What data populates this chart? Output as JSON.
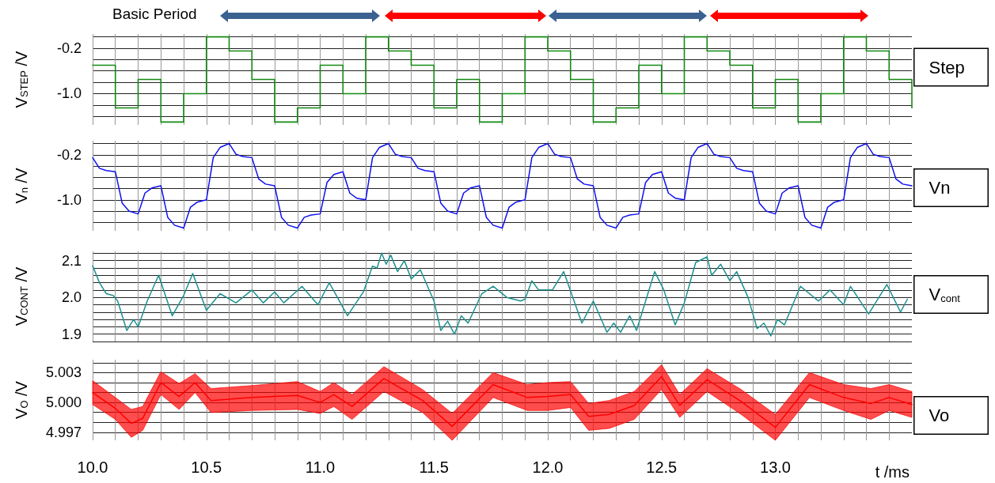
{
  "chart_data": [
    {
      "type": "step",
      "ylabel": "V$_{STEP}$ /V",
      "annotations": [
        "Basic Period"
      ],
      "legend": "right",
      "tick_labels": "y",
      "grid": true,
      "marker": "none",
      "xlim": [
        10,
        13.6
      ],
      "ylim": [
        -1.55,
        0.05
      ],
      "xticks": [
        {
          "value": 10,
          "label": null
        },
        {
          "value": 10.1,
          "label": null
        },
        {
          "value": 10.2,
          "label": null
        },
        {
          "value": 10.3,
          "label": null
        },
        {
          "value": 10.4,
          "label": null
        },
        {
          "value": 10.5,
          "label": null
        },
        {
          "value": 10.6,
          "label": null
        },
        {
          "value": 10.7,
          "label": null
        },
        {
          "value": 10.8,
          "label": null
        },
        {
          "value": 10.9,
          "label": null
        },
        {
          "value": 11,
          "label": null
        },
        {
          "value": 11.1,
          "label": null
        },
        {
          "value": 11.2,
          "label": null
        },
        {
          "value": 11.3,
          "label": null
        },
        {
          "value": 11.4,
          "label": null
        },
        {
          "value": 11.5,
          "label": null
        },
        {
          "value": 11.6,
          "label": null
        },
        {
          "value": 11.7,
          "label": null
        },
        {
          "value": 11.8,
          "label": null
        },
        {
          "value": 11.9,
          "label": null
        },
        {
          "value": 12,
          "label": null
        },
        {
          "value": 12.1,
          "label": null
        },
        {
          "value": 12.2,
          "label": null
        },
        {
          "value": 12.3,
          "label": null
        },
        {
          "value": 12.4,
          "label": null
        },
        {
          "value": 12.5,
          "label": null
        },
        {
          "value": 12.6,
          "label": null
        },
        {
          "value": 12.7,
          "label": null
        },
        {
          "value": 12.8,
          "label": null
        },
        {
          "value": 12.9,
          "label": null
        },
        {
          "value": 13,
          "label": null
        },
        {
          "value": 13.1,
          "label": null
        },
        {
          "value": 13.2,
          "label": null
        },
        {
          "value": 13.3,
          "label": null
        },
        {
          "value": 13.4,
          "label": null
        },
        {
          "value": 13.5,
          "label": null
        }
      ],
      "yticks": [
        {
          "value": 0,
          "label": null
        },
        {
          "value": -0.2,
          "label": "-0.2"
        },
        {
          "value": -0.4,
          "label": null
        },
        {
          "value": -0.6,
          "label": null
        },
        {
          "value": -0.8,
          "label": null
        },
        {
          "value": -1.0,
          "label": "-1.0"
        },
        {
          "value": -1.2,
          "label": null
        },
        {
          "value": -1.4,
          "label": null
        }
      ],
      "series": [
        {
          "name": "Step",
          "color": "#138a13",
          "x": [
            10,
            10.1,
            10.2,
            10.3,
            10.4,
            10.5,
            10.6,
            10.7,
            10.8,
            10.9,
            11,
            11.1,
            11.2,
            11.3,
            11.4,
            11.5,
            11.6,
            11.7,
            11.8,
            11.9,
            12,
            12.1,
            12.2,
            12.3,
            12.4,
            12.5,
            12.6,
            12.7,
            12.8,
            12.9,
            13,
            13.1,
            13.2,
            13.3,
            13.4,
            13.5,
            13.6
          ],
          "values": [
            -0.5,
            -1.25,
            -0.75,
            -1.5,
            -1.0,
            0,
            -0.25,
            -0.75,
            -1.5,
            -1.25,
            -0.5,
            -1.0,
            0,
            -0.25,
            -0.5,
            -1.25,
            -0.75,
            -1.5,
            -1.0,
            0,
            -0.25,
            -0.75,
            -1.5,
            -1.25,
            -0.5,
            -1.0,
            0,
            -0.25,
            -0.5,
            -1.25,
            -0.75,
            -1.5,
            -1.0,
            0,
            -0.25,
            -0.75,
            -1.25
          ]
        }
      ]
    },
    {
      "type": "line",
      "ylabel": "V$_{n}$ /V",
      "legend": "right",
      "tick_labels": "y",
      "grid": true,
      "marker": "none",
      "xlim": [
        10,
        13.6
      ],
      "ylim": [
        -1.55,
        0.05
      ],
      "xticks": [
        {
          "value": 10,
          "label": null
        },
        {
          "value": 10.1,
          "label": null
        },
        {
          "value": 10.2,
          "label": null
        },
        {
          "value": 10.3,
          "label": null
        },
        {
          "value": 10.4,
          "label": null
        },
        {
          "value": 10.5,
          "label": null
        },
        {
          "value": 10.6,
          "label": null
        },
        {
          "value": 10.7,
          "label": null
        },
        {
          "value": 10.8,
          "label": null
        },
        {
          "value": 10.9,
          "label": null
        },
        {
          "value": 11,
          "label": null
        },
        {
          "value": 11.1,
          "label": null
        },
        {
          "value": 11.2,
          "label": null
        },
        {
          "value": 11.3,
          "label": null
        },
        {
          "value": 11.4,
          "label": null
        },
        {
          "value": 11.5,
          "label": null
        },
        {
          "value": 11.6,
          "label": null
        },
        {
          "value": 11.7,
          "label": null
        },
        {
          "value": 11.8,
          "label": null
        },
        {
          "value": 11.9,
          "label": null
        },
        {
          "value": 12,
          "label": null
        },
        {
          "value": 12.1,
          "label": null
        },
        {
          "value": 12.2,
          "label": null
        },
        {
          "value": 12.3,
          "label": null
        },
        {
          "value": 12.4,
          "label": null
        },
        {
          "value": 12.5,
          "label": null
        },
        {
          "value": 12.6,
          "label": null
        },
        {
          "value": 12.7,
          "label": null
        },
        {
          "value": 12.8,
          "label": null
        },
        {
          "value": 12.9,
          "label": null
        },
        {
          "value": 13,
          "label": null
        },
        {
          "value": 13.1,
          "label": null
        },
        {
          "value": 13.2,
          "label": null
        },
        {
          "value": 13.3,
          "label": null
        },
        {
          "value": 13.4,
          "label": null
        },
        {
          "value": 13.5,
          "label": null
        }
      ],
      "yticks": [
        {
          "value": 0,
          "label": null
        },
        {
          "value": -0.2,
          "label": "-0.2"
        },
        {
          "value": -0.4,
          "label": null
        },
        {
          "value": -0.6,
          "label": null
        },
        {
          "value": -0.8,
          "label": null
        },
        {
          "value": -1.0,
          "label": "-1.0"
        },
        {
          "value": -1.2,
          "label": null
        },
        {
          "value": -1.4,
          "label": null
        }
      ],
      "series": [
        {
          "name": "Vn",
          "color": "#1010f0",
          "x": [
            10,
            10.03,
            10.06,
            10.1,
            10.13,
            10.16,
            10.2,
            10.23,
            10.26,
            10.3,
            10.33,
            10.36,
            10.4,
            10.43,
            10.46,
            10.5,
            10.53,
            10.56,
            10.6,
            10.63,
            10.66,
            10.7,
            10.73,
            10.76,
            10.8,
            10.83,
            10.86,
            10.9,
            10.93,
            10.96,
            11,
            11.03,
            11.06,
            11.1,
            11.13,
            11.16,
            11.2,
            11.23,
            11.26,
            11.3,
            11.33,
            11.36,
            11.4,
            11.43,
            11.46,
            11.5,
            11.53,
            11.56,
            11.6,
            11.63,
            11.66,
            11.7,
            11.73,
            11.76,
            11.8,
            11.83,
            11.86,
            11.9,
            11.93,
            11.96,
            12,
            12.03,
            12.06,
            12.1,
            12.13,
            12.16,
            12.2,
            12.23,
            12.26,
            12.3,
            12.33,
            12.36,
            12.4,
            12.43,
            12.46,
            12.5,
            12.53,
            12.56,
            12.6,
            12.63,
            12.66,
            12.7,
            12.73,
            12.76,
            12.8,
            12.83,
            12.86,
            12.9,
            12.93,
            12.96,
            13,
            13.03,
            13.06,
            13.1,
            13.13,
            13.16,
            13.2,
            13.23,
            13.26,
            13.3,
            13.33,
            13.36,
            13.4,
            13.43,
            13.46,
            13.5,
            13.53,
            13.56,
            13.6
          ],
          "values": [
            -0.25,
            -0.44,
            -0.48,
            -0.5,
            -1.06,
            -1.2,
            -1.25,
            -0.88,
            -0.79,
            -0.75,
            -1.31,
            -1.45,
            -1.5,
            -1.13,
            -1.04,
            -1.0,
            -0.25,
            -0.07,
            0,
            -0.19,
            -0.23,
            -0.25,
            -0.63,
            -0.72,
            -0.75,
            -1.31,
            -1.45,
            -1.5,
            -1.31,
            -1.27,
            -1.25,
            -0.69,
            -0.55,
            -0.5,
            -0.88,
            -0.97,
            -1.0,
            -0.25,
            -0.07,
            0,
            -0.19,
            -0.23,
            -0.25,
            -0.44,
            -0.48,
            -0.5,
            -1.06,
            -1.2,
            -1.25,
            -0.88,
            -0.79,
            -0.75,
            -1.31,
            -1.45,
            -1.5,
            -1.13,
            -1.04,
            -1.0,
            -0.25,
            -0.07,
            0,
            -0.19,
            -0.23,
            -0.25,
            -0.63,
            -0.72,
            -0.75,
            -1.31,
            -1.45,
            -1.5,
            -1.31,
            -1.27,
            -1.25,
            -0.69,
            -0.55,
            -0.5,
            -0.88,
            -0.97,
            -1.0,
            -0.25,
            -0.07,
            0,
            -0.19,
            -0.23,
            -0.25,
            -0.44,
            -0.48,
            -0.5,
            -1.06,
            -1.2,
            -1.25,
            -0.88,
            -0.79,
            -0.75,
            -1.31,
            -1.45,
            -1.5,
            -1.13,
            -1.04,
            -1.0,
            -0.25,
            -0.07,
            0,
            -0.19,
            -0.23,
            -0.25,
            -0.63,
            -0.72,
            -0.75
          ]
        }
      ]
    },
    {
      "type": "line",
      "ylabel": "V$_{CONT}$ /V",
      "legend": "right",
      "tick_labels": "y",
      "grid": true,
      "marker": "none",
      "xlim": [
        10,
        13.6
      ],
      "ylim": [
        1.88,
        2.125
      ],
      "xticks": [
        {
          "value": 10,
          "label": null
        },
        {
          "value": 10.1,
          "label": null
        },
        {
          "value": 10.2,
          "label": null
        },
        {
          "value": 10.3,
          "label": null
        },
        {
          "value": 10.4,
          "label": null
        },
        {
          "value": 10.5,
          "label": null
        },
        {
          "value": 10.6,
          "label": null
        },
        {
          "value": 10.7,
          "label": null
        },
        {
          "value": 10.8,
          "label": null
        },
        {
          "value": 10.9,
          "label": null
        },
        {
          "value": 11,
          "label": null
        },
        {
          "value": 11.1,
          "label": null
        },
        {
          "value": 11.2,
          "label": null
        },
        {
          "value": 11.3,
          "label": null
        },
        {
          "value": 11.4,
          "label": null
        },
        {
          "value": 11.5,
          "label": null
        },
        {
          "value": 11.6,
          "label": null
        },
        {
          "value": 11.7,
          "label": null
        },
        {
          "value": 11.8,
          "label": null
        },
        {
          "value": 11.9,
          "label": null
        },
        {
          "value": 12,
          "label": null
        },
        {
          "value": 12.1,
          "label": null
        },
        {
          "value": 12.2,
          "label": null
        },
        {
          "value": 12.3,
          "label": null
        },
        {
          "value": 12.4,
          "label": null
        },
        {
          "value": 12.5,
          "label": null
        },
        {
          "value": 12.6,
          "label": null
        },
        {
          "value": 12.7,
          "label": null
        },
        {
          "value": 12.8,
          "label": null
        },
        {
          "value": 12.9,
          "label": null
        },
        {
          "value": 13,
          "label": null
        },
        {
          "value": 13.1,
          "label": null
        },
        {
          "value": 13.2,
          "label": null
        },
        {
          "value": 13.3,
          "label": null
        },
        {
          "value": 13.4,
          "label": null
        },
        {
          "value": 13.5,
          "label": null
        }
      ],
      "yticks": [
        {
          "value": 1.88,
          "label": null
        },
        {
          "value": 1.9,
          "label": "1.9"
        },
        {
          "value": 1.92,
          "label": null
        },
        {
          "value": 1.94,
          "label": null
        },
        {
          "value": 1.96,
          "label": null
        },
        {
          "value": 1.98,
          "label": null
        },
        {
          "value": 2.0,
          "label": "2.0"
        },
        {
          "value": 2.02,
          "label": null
        },
        {
          "value": 2.04,
          "label": null
        },
        {
          "value": 2.06,
          "label": null
        },
        {
          "value": 2.08,
          "label": null
        },
        {
          "value": 2.1,
          "label": "2.1"
        },
        {
          "value": 2.12,
          "label": null
        }
      ],
      "series": [
        {
          "name": "V$_{cont}$",
          "color": "#1f9090",
          "x": [
            10,
            10.03,
            10.06,
            10.09,
            10.11,
            10.15,
            10.18,
            10.2,
            10.24,
            10.29,
            10.35,
            10.4,
            10.44,
            10.5,
            10.56,
            10.63,
            10.7,
            10.75,
            10.8,
            10.84,
            10.92,
            10.99,
            11.04,
            11.12,
            11.19,
            11.23,
            11.25,
            11.27,
            11.29,
            11.31,
            11.34,
            11.37,
            11.4,
            11.44,
            11.5,
            11.53,
            11.56,
            11.59,
            11.62,
            11.65,
            11.71,
            11.76,
            11.82,
            11.88,
            11.9,
            11.93,
            11.96,
            12.02,
            12.07,
            12.11,
            12.15,
            12.2,
            12.26,
            12.29,
            12.32,
            12.36,
            12.39,
            12.47,
            12.51,
            12.56,
            12.6,
            12.65,
            12.7,
            12.72,
            12.76,
            12.8,
            12.83,
            12.88,
            12.92,
            12.95,
            12.98,
            13.01,
            13.04,
            13.11,
            13.19,
            13.24,
            13.3,
            13.33,
            13.41,
            13.49,
            13.55,
            13.58
          ],
          "values": [
            2.086,
            2.04,
            2.01,
            2.005,
            1.99,
            1.91,
            1.94,
            1.92,
            1.99,
            2.06,
            1.95,
            2.005,
            2.065,
            1.965,
            2.01,
            1.985,
            2.02,
            1.985,
            2.015,
            1.985,
            2.03,
            1.98,
            2.04,
            1.95,
            2.015,
            2.085,
            2.08,
            2.12,
            2.09,
            2.115,
            2.07,
            2.1,
            2.05,
            2.075,
            1.99,
            1.91,
            1.935,
            1.9,
            1.95,
            1.93,
            2.01,
            2.03,
            2.0,
            1.99,
            1.995,
            2.045,
            2.02,
            2.02,
            2.07,
            2.0,
            1.93,
            1.99,
            1.905,
            1.93,
            1.905,
            1.95,
            1.91,
            2.07,
            2.02,
            1.925,
            1.985,
            2.095,
            2.11,
            2.06,
            2.09,
            2.045,
            2.07,
            2.0,
            1.915,
            1.93,
            1.895,
            1.94,
            1.925,
            2.03,
            1.99,
            2.02,
            1.98,
            2.03,
            1.955,
            2.035,
            1.96,
            1.995
          ]
        }
      ]
    },
    {
      "type": "line",
      "ylabel": "V$_{O}$ /V",
      "xlabel": "t /ms",
      "legend": "right",
      "grid": true,
      "marker": "none",
      "xlim": [
        10,
        13.6
      ],
      "ylim": [
        4.9962,
        5.0043
      ],
      "xticks": [
        {
          "value": 10,
          "label": "10.0"
        },
        {
          "value": 10.1,
          "label": null
        },
        {
          "value": 10.2,
          "label": null
        },
        {
          "value": 10.3,
          "label": null
        },
        {
          "value": 10.4,
          "label": null
        },
        {
          "value": 10.5,
          "label": "10.5"
        },
        {
          "value": 10.6,
          "label": null
        },
        {
          "value": 10.7,
          "label": null
        },
        {
          "value": 10.8,
          "label": null
        },
        {
          "value": 10.9,
          "label": null
        },
        {
          "value": 11,
          "label": "11.0"
        },
        {
          "value": 11.1,
          "label": null
        },
        {
          "value": 11.2,
          "label": null
        },
        {
          "value": 11.3,
          "label": null
        },
        {
          "value": 11.4,
          "label": null
        },
        {
          "value": 11.5,
          "label": "11.5"
        },
        {
          "value": 11.6,
          "label": null
        },
        {
          "value": 11.7,
          "label": null
        },
        {
          "value": 11.8,
          "label": null
        },
        {
          "value": 11.9,
          "label": null
        },
        {
          "value": 12,
          "label": "12.0"
        },
        {
          "value": 12.1,
          "label": null
        },
        {
          "value": 12.2,
          "label": null
        },
        {
          "value": 12.3,
          "label": null
        },
        {
          "value": 12.4,
          "label": null
        },
        {
          "value": 12.5,
          "label": "12.5"
        },
        {
          "value": 12.6,
          "label": null
        },
        {
          "value": 12.7,
          "label": null
        },
        {
          "value": 12.8,
          "label": null
        },
        {
          "value": 12.9,
          "label": null
        },
        {
          "value": 13,
          "label": "13.0"
        },
        {
          "value": 13.1,
          "label": null
        },
        {
          "value": 13.2,
          "label": null
        },
        {
          "value": 13.3,
          "label": null
        },
        {
          "value": 13.4,
          "label": null
        },
        {
          "value": 13.5,
          "label": null
        }
      ],
      "yticks": [
        {
          "value": 4.997,
          "label": "4.997"
        },
        {
          "value": 4.998,
          "label": null
        },
        {
          "value": 4.999,
          "label": null
        },
        {
          "value": 5.0,
          "label": "5.000"
        },
        {
          "value": 5.001,
          "label": null
        },
        {
          "value": 5.002,
          "label": null
        },
        {
          "value": 5.003,
          "label": "5.003"
        },
        {
          "value": 5.004,
          "label": null
        }
      ],
      "series": [
        {
          "name": "Vo",
          "color": "#ff0000",
          "x": [
            10,
            10.1,
            10.17,
            10.22,
            10.3,
            10.38,
            10.45,
            10.52,
            10.7,
            10.9,
            11,
            11.06,
            11.14,
            11.28,
            11.45,
            11.58,
            11.76,
            11.91,
            12,
            12.1,
            12.18,
            12.27,
            12.38,
            12.5,
            12.58,
            12.7,
            12.85,
            13,
            13.15,
            13.3,
            13.42,
            13.5,
            13.6
          ],
          "values": [
            5.001,
            4.9994,
            4.9979,
            4.9984,
            5.002,
            5.0006,
            5.002,
            5.0002,
            5.0005,
            5.0007,
            5.0,
            5.0008,
            4.9996,
            5.0024,
            5.0002,
            4.9976,
            5.0018,
            5.0005,
            5.0006,
            5.0008,
            4.9986,
            4.9988,
            4.9997,
            5.0026,
            4.9997,
            5.0023,
            5.0001,
            4.9975,
            5.0018,
            5.0005,
            4.9999,
            5.0005,
            4.9998
          ],
          "upper": [
            5.0022,
            5.0005,
            4.9993,
            4.9996,
            5.0031,
            5.0019,
            5.0029,
            5.0014,
            5.0017,
            5.0021,
            5.0011,
            5.002,
            5.0008,
            5.0036,
            5.0013,
            4.9989,
            5.003,
            5.0018,
            5.002,
            5.0021,
            4.9999,
            5.0002,
            5.0011,
            5.0038,
            5.0008,
            5.0034,
            5.0013,
            4.9988,
            5.003,
            5.0018,
            5.0014,
            5.0018,
            5.0011
          ],
          "lower": [
            4.9998,
            4.9983,
            4.9965,
            4.9972,
            5.0008,
            4.9993,
            5.001,
            4.999,
            4.9992,
            4.9993,
            4.9989,
            4.9996,
            4.9983,
            5.0011,
            4.999,
            4.9962,
            5.0005,
            4.9992,
            4.9992,
            4.9995,
            4.9972,
            4.9974,
            4.9983,
            5.0013,
            4.9985,
            5.0011,
            4.9988,
            4.9962,
            5.0005,
            4.9992,
            4.9983,
            4.9992,
            4.9985
          ]
        }
      ]
    }
  ]
}
